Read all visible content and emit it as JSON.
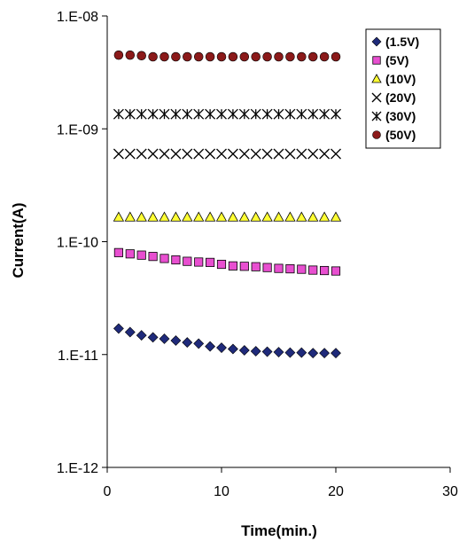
{
  "chart_data": {
    "type": "scatter",
    "xlabel": "Time(min.)",
    "ylabel": "Current(A)",
    "xlim": [
      0,
      30
    ],
    "ylim": [
      1e-12,
      1e-08
    ],
    "yscale": "log",
    "x_ticks": [
      "0",
      "10",
      "20",
      "30"
    ],
    "y_ticks": [
      "1.E-12",
      "1.E-11",
      "1.E-10",
      "1.E-09",
      "1.E-08"
    ],
    "grid": false,
    "legend_position": "top-right",
    "x": [
      1,
      2,
      3,
      4,
      5,
      6,
      7,
      8,
      9,
      10,
      11,
      12,
      13,
      14,
      15,
      16,
      17,
      18,
      19,
      20
    ],
    "series": [
      {
        "name": "(1.5V)",
        "marker": "diamond",
        "color": "#1f2a7a",
        "values": [
          1.7e-11,
          1.58e-11,
          1.48e-11,
          1.42e-11,
          1.38e-11,
          1.33e-11,
          1.28e-11,
          1.25e-11,
          1.18e-11,
          1.15e-11,
          1.12e-11,
          1.09e-11,
          1.07e-11,
          1.06e-11,
          1.05e-11,
          1.04e-11,
          1.04e-11,
          1.03e-11,
          1.03e-11,
          1.03e-11
        ]
      },
      {
        "name": "(5V)",
        "marker": "square",
        "color": "#e84fd0",
        "values": [
          8e-11,
          7.8e-11,
          7.6e-11,
          7.4e-11,
          7.1e-11,
          6.9e-11,
          6.7e-11,
          6.6e-11,
          6.55e-11,
          6.3e-11,
          6.1e-11,
          6.05e-11,
          6e-11,
          5.9e-11,
          5.8e-11,
          5.75e-11,
          5.7e-11,
          5.6e-11,
          5.55e-11,
          5.5e-11
        ]
      },
      {
        "name": "(10V)",
        "marker": "triangle",
        "color": "#ffff33",
        "values": [
          1.65e-10,
          1.65e-10,
          1.65e-10,
          1.65e-10,
          1.65e-10,
          1.65e-10,
          1.65e-10,
          1.65e-10,
          1.65e-10,
          1.65e-10,
          1.65e-10,
          1.65e-10,
          1.65e-10,
          1.65e-10,
          1.65e-10,
          1.65e-10,
          1.65e-10,
          1.65e-10,
          1.65e-10,
          1.65e-10
        ]
      },
      {
        "name": "(20V)",
        "marker": "x",
        "color": "#000000",
        "values": [
          6e-10,
          6e-10,
          6e-10,
          6e-10,
          6e-10,
          6e-10,
          6e-10,
          6e-10,
          6e-10,
          6e-10,
          6e-10,
          6e-10,
          6e-10,
          6e-10,
          6e-10,
          6e-10,
          6e-10,
          6e-10,
          6e-10,
          6e-10
        ]
      },
      {
        "name": "(30V)",
        "marker": "asterisk",
        "color": "#000000",
        "values": [
          1.35e-09,
          1.35e-09,
          1.35e-09,
          1.35e-09,
          1.35e-09,
          1.35e-09,
          1.35e-09,
          1.35e-09,
          1.35e-09,
          1.35e-09,
          1.35e-09,
          1.35e-09,
          1.35e-09,
          1.35e-09,
          1.35e-09,
          1.35e-09,
          1.35e-09,
          1.35e-09,
          1.35e-09,
          1.35e-09
        ]
      },
      {
        "name": "(50V)",
        "marker": "circle",
        "color": "#8b1a1a",
        "values": [
          4.5e-09,
          4.5e-09,
          4.45e-09,
          4.35e-09,
          4.35e-09,
          4.35e-09,
          4.35e-09,
          4.35e-09,
          4.35e-09,
          4.35e-09,
          4.35e-09,
          4.35e-09,
          4.35e-09,
          4.35e-09,
          4.35e-09,
          4.35e-09,
          4.35e-09,
          4.35e-09,
          4.35e-09,
          4.35e-09
        ]
      }
    ]
  }
}
